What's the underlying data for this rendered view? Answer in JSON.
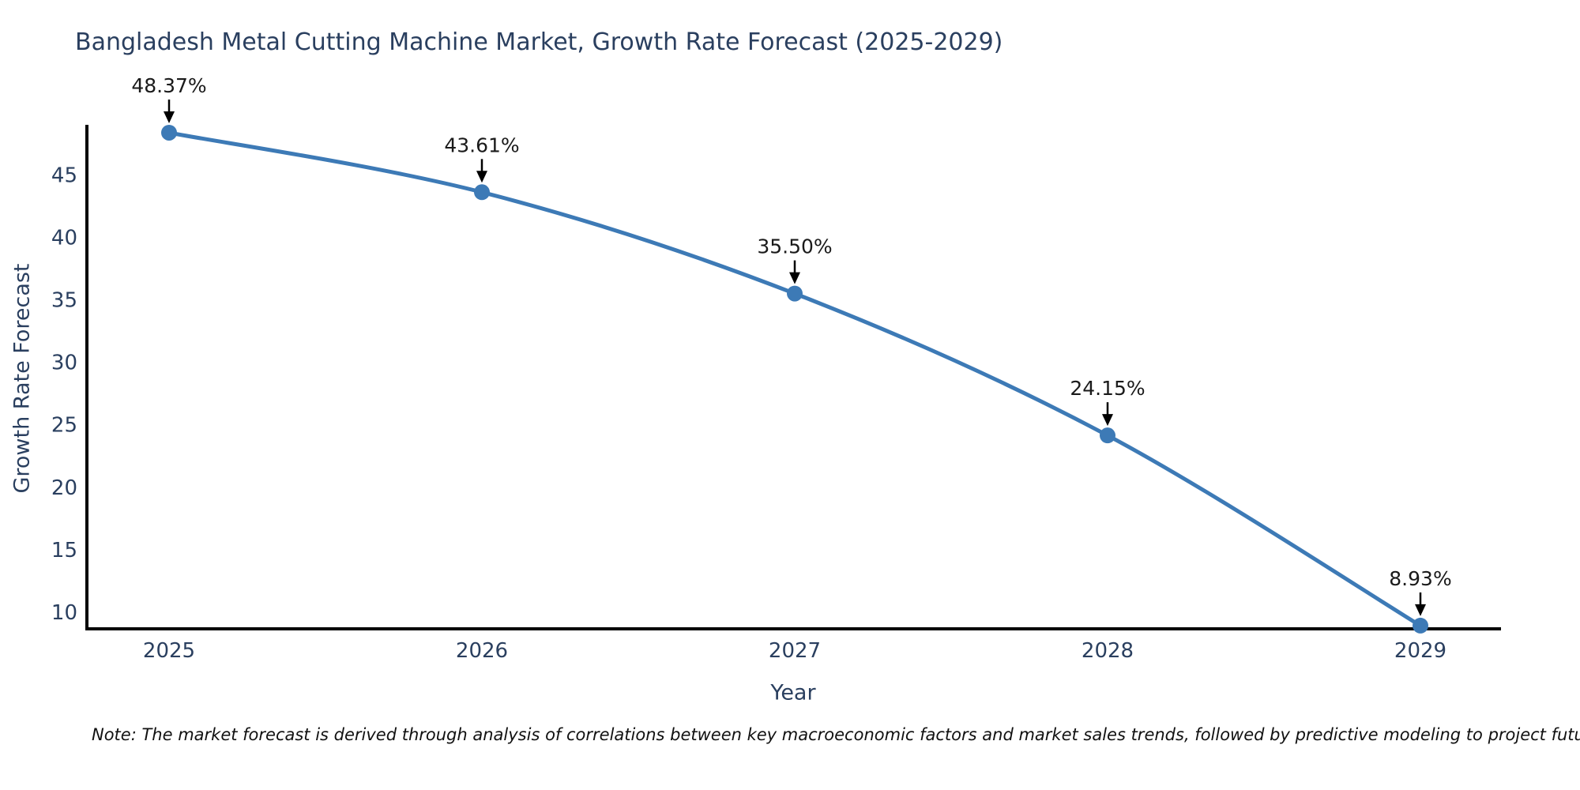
{
  "note": "Note: The market forecast is derived through analysis of correlations between key macroeconomic factors and market sales trends, followed by predictive modeling to project future sales",
  "chart_data": {
    "type": "line",
    "title": "Bangladesh Metal Cutting Machine Market, Growth Rate Forecast (2025-2029)",
    "xlabel": "Year",
    "ylabel": "Growth Rate Forecast",
    "x": [
      2025,
      2026,
      2027,
      2028,
      2029
    ],
    "values": [
      48.37,
      43.61,
      35.5,
      24.15,
      8.93
    ],
    "point_labels": [
      "48.37%",
      "43.61%",
      "35.50%",
      "24.15%",
      "8.93%"
    ],
    "x_ticks": [
      "2025",
      "2026",
      "2027",
      "2028",
      "2029"
    ],
    "y_ticks": [
      10,
      15,
      20,
      25,
      30,
      35,
      40,
      45
    ],
    "xlim": [
      2024.73,
      2029.27
    ],
    "ylim": [
      8.42,
      48.9
    ],
    "grid": false,
    "legend": "none",
    "line_shape": "spline",
    "line_color": "#3d7ab6",
    "marker_color": "#3d7ab6",
    "axis_color": "#000000",
    "label_color": "#2a3f5f",
    "annotation_color": "#000000",
    "annotation_text_color": "#1a1a1a"
  }
}
